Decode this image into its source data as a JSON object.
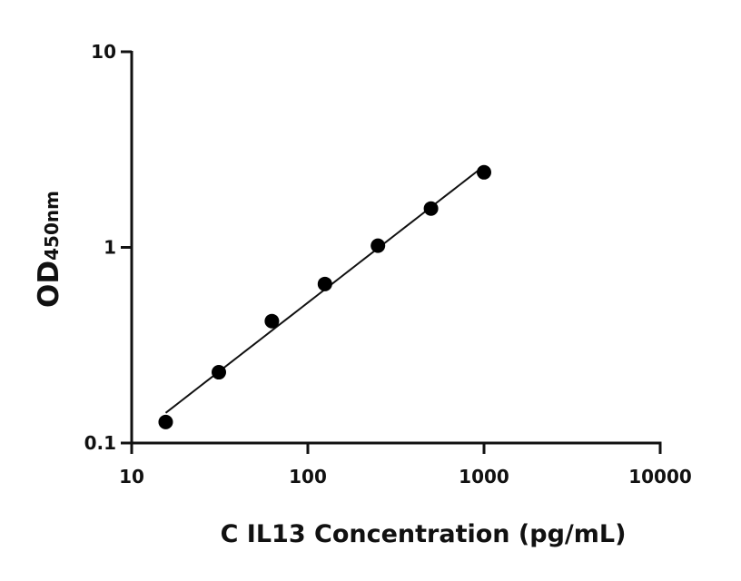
{
  "chart_data": {
    "type": "scatter",
    "title": "",
    "xlabel": "C IL13 Concentration (pg/mL)",
    "ylabel_main": "OD",
    "ylabel_sub": "450nm",
    "xscale": "log",
    "yscale": "log",
    "xlim": [
      10,
      10000
    ],
    "ylim": [
      0.1,
      10
    ],
    "xticks": [
      10,
      100,
      1000,
      10000
    ],
    "xtick_labels": [
      "10",
      "100",
      "1000",
      "10000"
    ],
    "yticks": [
      0.1,
      1,
      10
    ],
    "ytick_labels": [
      "0.1",
      "1",
      "10"
    ],
    "grid": false,
    "legend": "none",
    "series": [
      {
        "x": [
          15.6,
          31.25,
          62.5,
          125,
          250,
          500,
          1000
        ],
        "y": [
          0.128,
          0.23,
          0.42,
          0.65,
          1.02,
          1.58,
          2.42
        ],
        "fit_line": true,
        "color": "#000000"
      }
    ]
  }
}
